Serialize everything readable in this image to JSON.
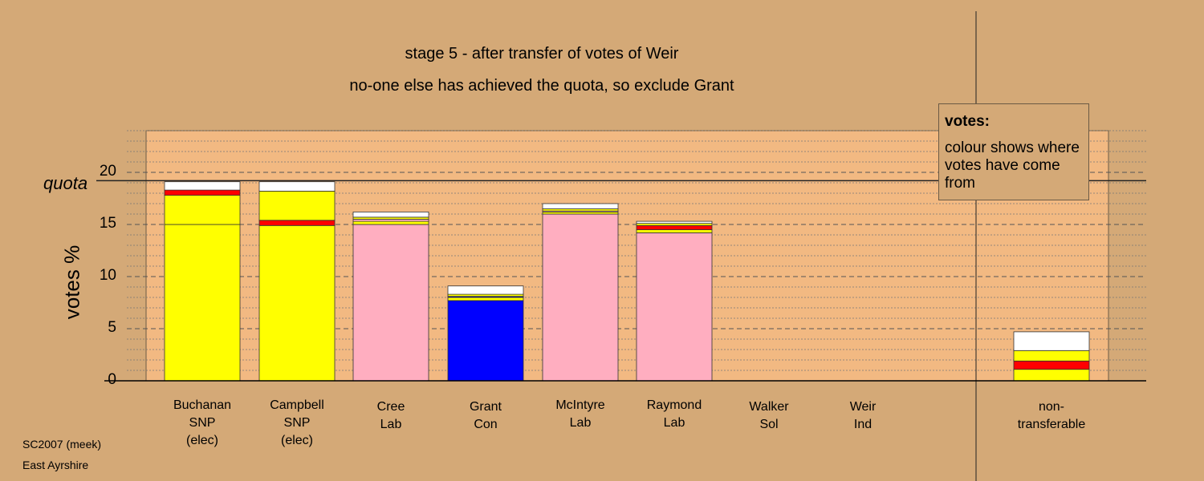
{
  "title_line1": "stage 5 - after transfer of votes of Weir",
  "title_line2": "no-one else has achieved the quota, so exclude Grant",
  "legend": {
    "title": "votes:",
    "body": "colour shows where votes have come from"
  },
  "footer": {
    "line1": "SC2007 (meek)",
    "line2": "East Ayrshire"
  },
  "colors": {
    "snp": "#FFFF00",
    "lab": "#FFAEC0",
    "con": "#0000FF",
    "ind": "#FF0000",
    "other": "#FFFFFF",
    "plot_bg": "#F2B982"
  },
  "chart_data": {
    "type": "bar",
    "stacked": true,
    "ylabel": "votes %",
    "ylim": [
      0,
      24
    ],
    "yticks": [
      0,
      5,
      10,
      15,
      20
    ],
    "quota": {
      "label": "quota",
      "value": 19.2
    },
    "grid": true,
    "legend_position": "top-right",
    "categories": [
      {
        "name": "Buchanan",
        "party": "SNP",
        "status": "(elec)"
      },
      {
        "name": "Campbell",
        "party": "SNP",
        "status": "(elec)"
      },
      {
        "name": "Cree",
        "party": "Lab",
        "status": ""
      },
      {
        "name": "Grant",
        "party": "Con",
        "status": ""
      },
      {
        "name": "McIntyre",
        "party": "Lab",
        "status": ""
      },
      {
        "name": "Raymond",
        "party": "Lab",
        "status": ""
      },
      {
        "name": "Walker",
        "party": "Sol",
        "status": ""
      },
      {
        "name": "Weir",
        "party": "Ind",
        "status": ""
      },
      {
        "name": "non-",
        "party": "transferable",
        "status": ""
      }
    ],
    "bars": [
      [
        {
          "color": "snp",
          "value": 15.0
        },
        {
          "color": "snp",
          "value": 2.8
        },
        {
          "color": "ind",
          "value": 0.5
        },
        {
          "color": "other",
          "value": 0.8
        }
      ],
      [
        {
          "color": "snp",
          "value": 14.9
        },
        {
          "color": "ind",
          "value": 0.5
        },
        {
          "color": "snp",
          "value": 2.8
        },
        {
          "color": "other",
          "value": 0.9
        }
      ],
      [
        {
          "color": "lab",
          "value": 15.0
        },
        {
          "color": "snp",
          "value": 0.3
        },
        {
          "color": "lab",
          "value": 0.2
        },
        {
          "color": "snp",
          "value": 0.2
        },
        {
          "color": "other",
          "value": 0.5
        }
      ],
      [
        {
          "color": "con",
          "value": 7.7
        },
        {
          "color": "snp",
          "value": 0.3
        },
        {
          "color": "con",
          "value": 0.1
        },
        {
          "color": "snp",
          "value": 0.2
        },
        {
          "color": "other",
          "value": 0.8
        }
      ],
      [
        {
          "color": "lab",
          "value": 16.0
        },
        {
          "color": "snp",
          "value": 0.2
        },
        {
          "color": "lab",
          "value": 0.1
        },
        {
          "color": "snp",
          "value": 0.2
        },
        {
          "color": "other",
          "value": 0.5
        }
      ],
      [
        {
          "color": "lab",
          "value": 14.2
        },
        {
          "color": "snp",
          "value": 0.3
        },
        {
          "color": "ind",
          "value": 0.4
        },
        {
          "color": "snp",
          "value": 0.2
        },
        {
          "color": "other",
          "value": 0.2
        }
      ],
      [],
      [],
      [
        {
          "color": "snp",
          "value": 1.1
        },
        {
          "color": "ind",
          "value": 0.8
        },
        {
          "color": "snp",
          "value": 1.0
        },
        {
          "color": "other",
          "value": 1.8
        }
      ]
    ]
  }
}
